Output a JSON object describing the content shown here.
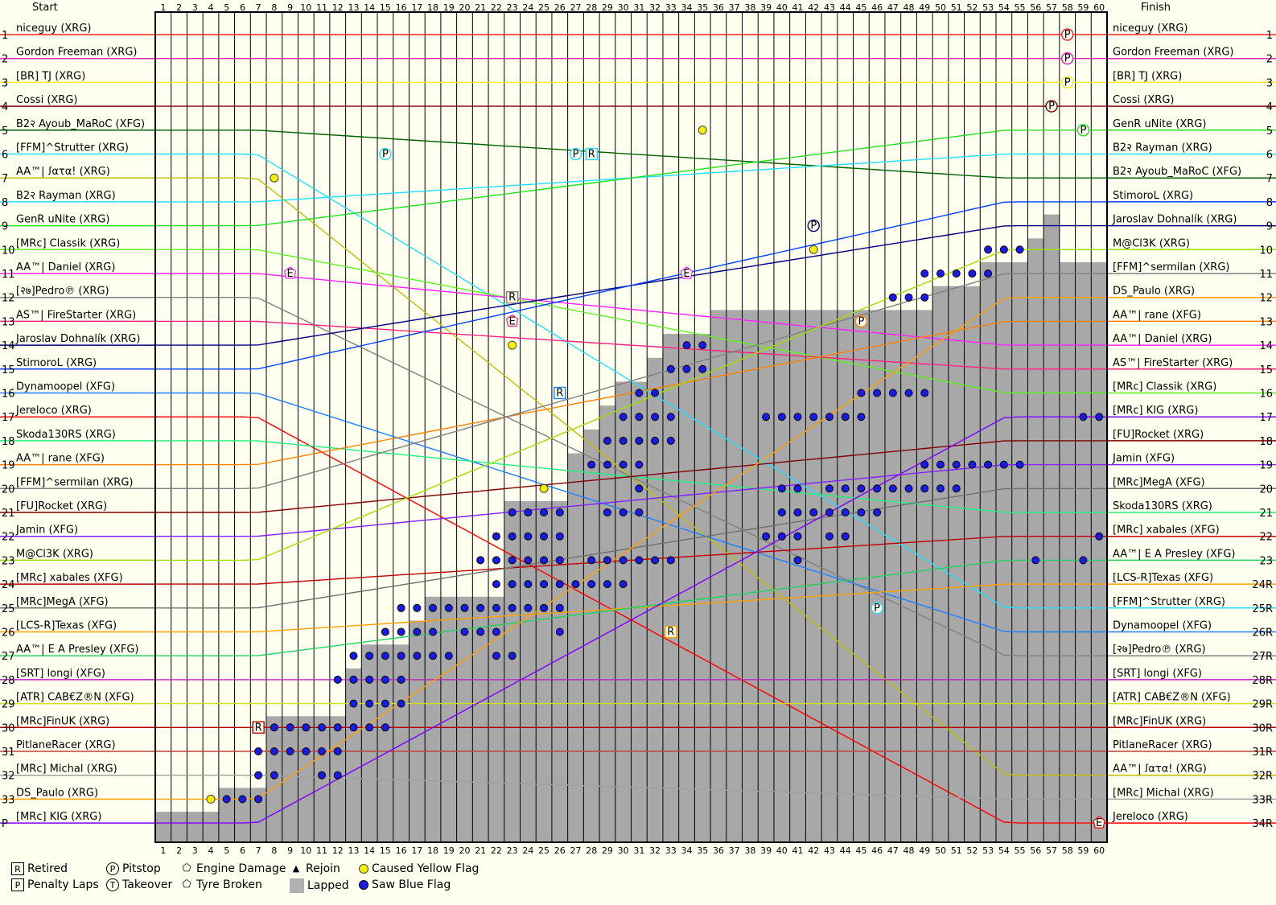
{
  "chart_data": {
    "type": "line",
    "title": "",
    "header_left": "Start",
    "header_right": "Finish",
    "laps": 60,
    "position_labels_left": [
      "1",
      "2",
      "3",
      "4",
      "5",
      "6",
      "7",
      "8",
      "9",
      "10",
      "11",
      "12",
      "13",
      "14",
      "15",
      "16",
      "17",
      "18",
      "19",
      "20",
      "21",
      "22",
      "23",
      "24",
      "25",
      "26",
      "27",
      "28",
      "29",
      "30",
      "31",
      "32",
      "33",
      "P"
    ],
    "position_labels_right": [
      "1",
      "2",
      "3",
      "4",
      "5",
      "6",
      "7",
      "8",
      "9",
      "10",
      "11",
      "12",
      "13",
      "14",
      "15",
      "16",
      "17",
      "18",
      "19",
      "20",
      "21",
      "22",
      "23",
      "24R",
      "25R",
      "26R",
      "27R",
      "28R",
      "29R",
      "30R",
      "31R",
      "32R",
      "33R",
      "34R"
    ],
    "start_order": [
      "niceguy (XRG)",
      "Gordon Freeman (XRG)",
      "[BR] TJ (XRG)",
      "Cossi (XRG)",
      "B2२ Ayoub_MaRoC (XFG)",
      "[FFM]^Strutter (XRG)",
      "AA™| ꭍατα! (XRG)",
      "B2२ Rayman (XRG)",
      "GenR uNite (XRG)",
      "[MRc] Classik (XRG)",
      "AA™| Daniel (XRG)",
      "[२७]Pedro℗ (XRG)",
      "AS™| FireStarter (XRG)",
      "Jaroslav Dohnalík (XRG)",
      "StimoroL (XRG)",
      "Dynamoopel (XFG)",
      "Jereloco (XRG)",
      "Skoda130RS (XRG)",
      "AA™| rane (XFG)",
      "[FFM]^sermilan (XRG)",
      "[FU]Rocket (XRG)",
      "Jamin (XFG)",
      "M@Cl3K (XRG)",
      "[MRc] xabales (XFG)",
      "[MRc]MegA (XFG)",
      "[LCS-R]Texas (XFG)",
      "AA™| E A Presley (XFG)",
      "[SRT] longi (XFG)",
      "[ATR] CAB€Z®N (XFG)",
      "[MRc]FinUK (XRG)",
      "PitlaneRacer (XRG)",
      "[MRc] Michal (XRG)",
      "DS_Paulo (XRG)",
      "[MRc] KIG (XRG)"
    ],
    "finish_order": [
      "niceguy (XRG)",
      "Gordon Freeman (XRG)",
      "[BR] TJ (XRG)",
      "Cossi (XRG)",
      "GenR uNite (XRG)",
      "B2२ Rayman (XRG)",
      "B2२ Ayoub_MaRoC (XFG)",
      "StimoroL (XRG)",
      "Jaroslav Dohnalík (XRG)",
      "M@Cl3K (XRG)",
      "[FFM]^sermilan (XRG)",
      "DS_Paulo (XRG)",
      "AA™| rane (XFG)",
      "AA™| Daniel (XRG)",
      "AS™| FireStarter (XRG)",
      "[MRc] Classik (XRG)",
      "[MRc] KIG (XRG)",
      "[FU]Rocket (XRG)",
      "Jamin (XFG)",
      "[MRc]MegA (XFG)",
      "Skoda130RS (XRG)",
      "[MRc] xabales (XFG)",
      "AA™| E A Presley (XFG)",
      "[LCS-R]Texas (XFG)",
      "[FFM]^Strutter (XRG)",
      "Dynamoopel (XFG)",
      "[२७]Pedro℗ (XRG)",
      "[SRT] longi (XFG)",
      "[ATR] CAB€Z®N (XFG)",
      "[MRc]FinUK (XRG)",
      "PitlaneRacer (XRG)",
      "AA™| ꭍατα! (XRG)",
      "[MRc] Michal (XRG)",
      "Jereloco (XRG)"
    ],
    "series_colors": {
      "niceguy (XRG)": "#ff2020",
      "Gordon Freeman (XRG)": "#e020c0",
      "[BR] TJ (XRG)": "#f0f020",
      "Cossi (XRG)": "#800000",
      "B2२ Ayoub_MaRoC (XFG)": "#006000",
      "[FFM]^Strutter (XRG)": "#20e0ff",
      "AA™| ꭍατα! (XRG)": "#c0c000",
      "B2२ Rayman (XRG)": "#20e0ff",
      "GenR uNite (XRG)": "#20e020",
      "[MRc] Classik (XRG)": "#60f020",
      "AA™| Daniel (XRG)": "#ff20ff",
      "[२७]Pedro℗ (XRG)": "#808080",
      "AS™| FireStarter (XRG)": "#ff2080",
      "Jaroslav Dohnalík (XRG)": "#000080",
      "StimoroL (XRG)": "#0040ff",
      "Dynamoopel (XFG)": "#2080ff",
      "Jereloco (XRG)": "#ff0000",
      "Skoda130RS (XRG)": "#20f080",
      "AA™| rane (XFG)": "#ff8000",
      "[FFM]^sermilan (XRG)": "#808080",
      "[FU]Rocket (XRG)": "#800000",
      "Jamin (XFG)": "#8020ff",
      "M@Cl3K (XRG)": "#a0e000",
      "[MRc] xabales (XFG)": "#c00000",
      "[MRc]MegA (XFG)": "#707070",
      "[LCS-R]Texas (XFG)": "#ffa000",
      "AA™| E A Presley (XFG)": "#20d060",
      "[SRT] longi (XFG)": "#c020c0",
      "[ATR] CAB€Z®N (XFG)": "#d0e020",
      "[MRc]FinUK (XRG)": "#b00000",
      "PitlaneRacer (XRG)": "#c04040",
      "[MRc] Michal (XRG)": "#a0a0a0",
      "DS_Paulo (XRG)": "#ffa000",
      "[MRc] KIG (XRG)": "#8000ff"
    },
    "lapped_count_per_lap": [
      1,
      1,
      1,
      1,
      2,
      2,
      2,
      5,
      5,
      5,
      5,
      5,
      7,
      8,
      8,
      8,
      9,
      10,
      10,
      10,
      10,
      10,
      14,
      14,
      14,
      14,
      16,
      17,
      18,
      19,
      19,
      20,
      21,
      21,
      21,
      22,
      22,
      22,
      22,
      22,
      22,
      22,
      22,
      22,
      22,
      22,
      22,
      22,
      22,
      23,
      23,
      23,
      24,
      24,
      24,
      25,
      26,
      24,
      24,
      24
    ],
    "markers": [
      {
        "driver": "niceguy (XRG)",
        "lap": 58,
        "type": "pitstop"
      },
      {
        "driver": "Gordon Freeman (XRG)",
        "lap": 58,
        "type": "pitstop"
      },
      {
        "driver": "[BR] TJ (XRG)",
        "lap": 58,
        "type": "pitstop"
      },
      {
        "driver": "Cossi (XRG)",
        "lap": 57,
        "type": "pitstop"
      },
      {
        "driver": "GenR uNite (XRG)",
        "lap": 59,
        "type": "pitstop"
      },
      {
        "driver": "[FFM]^Strutter (XRG)",
        "lap": 15,
        "type": "pitstop"
      },
      {
        "driver": "[FFM]^Strutter (XRG)",
        "lap": 27,
        "type": "pitstop"
      },
      {
        "driver": "[FFM]^Strutter (XRG)",
        "lap": 46,
        "type": "pitstop"
      },
      {
        "driver": "Jaroslav Dohnalík (XRG)",
        "lap": 42,
        "type": "pitstop"
      },
      {
        "driver": "AA™| rane (XFG)",
        "lap": 45,
        "type": "pitstop"
      },
      {
        "driver": "[LCS-R]Texas (XFG)",
        "lap": 33,
        "type": "retired"
      },
      {
        "driver": "[FFM]^Strutter (XRG)",
        "lap": 28,
        "type": "retired"
      },
      {
        "driver": "[२७]Pedro℗ (XRG)",
        "lap": 23,
        "type": "retired"
      },
      {
        "driver": "Dynamoopel (XFG)",
        "lap": 26,
        "type": "retired"
      },
      {
        "driver": "[MRc]FinUK (XRG)",
        "lap": 7,
        "type": "retired"
      },
      {
        "driver": "AA™| Daniel (XRG)",
        "lap": 9,
        "type": "engine"
      },
      {
        "driver": "AS™| FireStarter (XRG)",
        "lap": 23,
        "type": "engine"
      },
      {
        "driver": "AA™| Daniel (XRG)",
        "lap": 34,
        "type": "engine"
      },
      {
        "driver": "Jereloco (XRG)",
        "lap": 60,
        "type": "engine"
      },
      {
        "driver": "AA™| ꭍατα! (XRG)",
        "lap": 8,
        "type": "yellow"
      },
      {
        "driver": "B2२ Ayoub_MaRoC (XFG)",
        "lap": 35,
        "type": "yellow"
      },
      {
        "driver": "Jaroslav Dohnalík (XRG)",
        "lap": 23,
        "type": "yellow"
      },
      {
        "driver": "[FFM]^sermilan (XRG)",
        "lap": 25,
        "type": "yellow"
      },
      {
        "driver": "DS_Paulo (XRG)",
        "lap": 4,
        "type": "yellow"
      },
      {
        "driver": "M@Cl3K (XRG)",
        "lap": 42,
        "type": "yellow"
      }
    ],
    "blue_flag_rows": [
      {
        "row": 10,
        "laps": [
          53,
          54,
          55
        ]
      },
      {
        "row": 11,
        "laps": [
          49,
          50,
          51,
          52,
          53
        ]
      },
      {
        "row": 12,
        "laps": [
          47,
          48,
          49
        ]
      },
      {
        "row": 14,
        "laps": [
          34,
          35
        ]
      },
      {
        "row": 15,
        "laps": [
          33,
          34,
          35
        ]
      },
      {
        "row": 16,
        "laps": [
          31,
          32,
          45,
          46,
          47,
          48,
          49
        ]
      },
      {
        "row": 17,
        "laps": [
          30,
          31,
          32,
          33,
          39,
          40,
          41,
          42,
          43,
          44,
          45,
          59,
          60
        ]
      },
      {
        "row": 18,
        "laps": [
          29,
          30,
          31,
          32,
          33
        ]
      },
      {
        "row": 19,
        "laps": [
          28,
          29,
          30,
          31,
          49,
          50,
          51,
          52,
          53,
          54,
          55
        ]
      },
      {
        "row": 20,
        "laps": [
          31,
          40,
          41,
          43,
          44,
          45,
          46,
          47,
          48,
          49,
          50,
          51
        ]
      },
      {
        "row": 21,
        "laps": [
          23,
          24,
          25,
          26,
          29,
          30,
          31,
          40,
          41,
          42,
          43,
          44,
          45,
          46
        ]
      },
      {
        "row": 22,
        "laps": [
          22,
          23,
          24,
          25,
          26,
          39,
          40,
          41,
          43,
          44,
          60
        ]
      },
      {
        "row": 23,
        "laps": [
          21,
          22,
          23,
          24,
          25,
          26,
          28,
          29,
          30,
          31,
          32,
          33,
          41,
          56,
          59
        ]
      },
      {
        "row": 24,
        "laps": [
          22,
          23,
          24,
          25,
          26,
          27,
          28,
          29,
          30
        ]
      },
      {
        "row": 25,
        "laps": [
          16,
          17,
          18,
          19,
          20,
          21,
          22,
          23,
          24,
          25,
          26
        ]
      },
      {
        "row": 26,
        "laps": [
          15,
          16,
          17,
          18,
          20,
          21,
          22,
          26
        ]
      },
      {
        "row": 27,
        "laps": [
          13,
          14,
          15,
          16,
          17,
          18,
          19,
          22,
          23
        ]
      },
      {
        "row": 28,
        "laps": [
          12,
          13,
          14,
          15,
          16
        ]
      },
      {
        "row": 29,
        "laps": [
          13,
          14,
          15,
          16
        ]
      },
      {
        "row": 30,
        "laps": [
          7,
          8,
          9,
          10,
          11,
          12,
          13,
          14,
          15
        ]
      },
      {
        "row": 31,
        "laps": [
          7,
          8,
          9,
          10,
          11,
          12
        ]
      },
      {
        "row": 32,
        "laps": [
          7,
          8,
          11,
          12
        ]
      },
      {
        "row": 33,
        "laps": [
          5,
          6,
          7
        ]
      }
    ],
    "legend": {
      "retired": "Retired",
      "penalty": "Penalty Laps",
      "pitstop": "Pitstop",
      "takeover": "Takeover",
      "engine": "Engine Damage",
      "tyre": "Tyre Broken",
      "rejoin": "Rejoin",
      "lapped": "Lapped",
      "yellow": "Caused Yellow Flag",
      "blue": "Saw Blue Flag"
    }
  }
}
